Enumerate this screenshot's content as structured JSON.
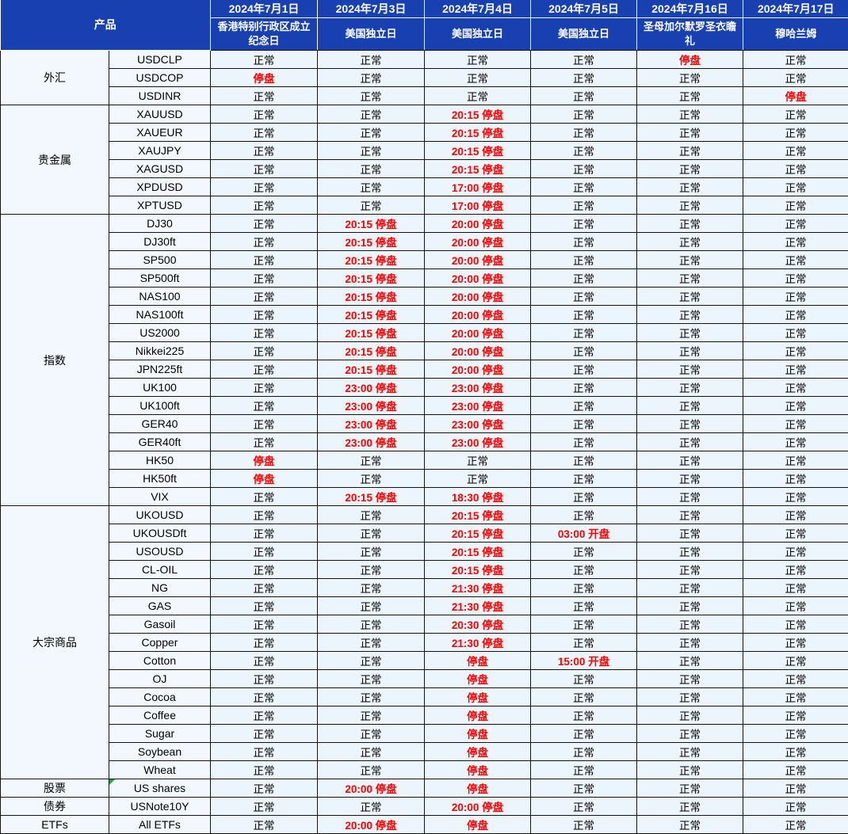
{
  "header": {
    "product_label": "产品",
    "columns": [
      {
        "date": "2024年7月1日",
        "holiday": "香港特别行政区成立纪念日"
      },
      {
        "date": "2024年7月3日",
        "holiday": "美国独立日"
      },
      {
        "date": "2024年7月4日",
        "holiday": "美国独立日"
      },
      {
        "date": "2024年7月5日",
        "holiday": "美国独立日"
      },
      {
        "date": "2024年7月16日",
        "holiday": "圣母加尔默罗圣衣瞻礼"
      },
      {
        "date": "2024年7月17日",
        "holiday": "穆哈兰姆"
      }
    ]
  },
  "statuses": {
    "normal": "正常",
    "closed": "停盘",
    "open": "开盘"
  },
  "colors": {
    "header_bg": "#1840b0",
    "header_text": "#ffffff",
    "status_cell_bg": "#ecf5fb",
    "label_cell_bg": "#f2f8fd",
    "alert_text": "#ff0000",
    "normal_text": "#000000",
    "border": "#141414",
    "corner_marker_green": "#2e9e44"
  },
  "groups": [
    {
      "category": "外汇",
      "rows": [
        {
          "product": "USDCLP",
          "cells": [
            "正常",
            "正常",
            "正常",
            "正常",
            "停盘",
            "正常"
          ]
        },
        {
          "product": "USDCOP",
          "cells": [
            "停盘",
            "正常",
            "正常",
            "正常",
            "正常",
            "正常"
          ]
        },
        {
          "product": "USDINR",
          "cells": [
            "正常",
            "正常",
            "正常",
            "正常",
            "正常",
            "停盘"
          ]
        }
      ]
    },
    {
      "category": "贵金属",
      "rows": [
        {
          "product": "XAUUSD",
          "cells": [
            "正常",
            "正常",
            "20:15 停盘",
            "正常",
            "正常",
            "正常"
          ]
        },
        {
          "product": "XAUEUR",
          "cells": [
            "正常",
            "正常",
            "20:15 停盘",
            "正常",
            "正常",
            "正常"
          ]
        },
        {
          "product": "XAUJPY",
          "cells": [
            "正常",
            "正常",
            "20:15 停盘",
            "正常",
            "正常",
            "正常"
          ]
        },
        {
          "product": "XAGUSD",
          "cells": [
            "正常",
            "正常",
            "20:15 停盘",
            "正常",
            "正常",
            "正常"
          ]
        },
        {
          "product": "XPDUSD",
          "cells": [
            "正常",
            "正常",
            "17:00 停盘",
            "正常",
            "正常",
            "正常"
          ]
        },
        {
          "product": "XPTUSD",
          "cells": [
            "正常",
            "正常",
            "17:00 停盘",
            "正常",
            "正常",
            "正常"
          ]
        }
      ]
    },
    {
      "category": "指数",
      "rows": [
        {
          "product": "DJ30",
          "cells": [
            "正常",
            "20:15 停盘",
            "20:00 停盘",
            "正常",
            "正常",
            "正常"
          ]
        },
        {
          "product": "DJ30ft",
          "cells": [
            "正常",
            "20:15 停盘",
            "20:00 停盘",
            "正常",
            "正常",
            "正常"
          ]
        },
        {
          "product": "SP500",
          "cells": [
            "正常",
            "20:15 停盘",
            "20:00 停盘",
            "正常",
            "正常",
            "正常"
          ]
        },
        {
          "product": "SP500ft",
          "cells": [
            "正常",
            "20:15 停盘",
            "20:00 停盘",
            "正常",
            "正常",
            "正常"
          ]
        },
        {
          "product": "NAS100",
          "cells": [
            "正常",
            "20:15 停盘",
            "20:00 停盘",
            "正常",
            "正常",
            "正常"
          ]
        },
        {
          "product": "NAS100ft",
          "cells": [
            "正常",
            "20:15 停盘",
            "20:00 停盘",
            "正常",
            "正常",
            "正常"
          ]
        },
        {
          "product": "US2000",
          "cells": [
            "正常",
            "20:15 停盘",
            "20:00 停盘",
            "正常",
            "正常",
            "正常"
          ]
        },
        {
          "product": "Nikkei225",
          "cells": [
            "正常",
            "20:15 停盘",
            "20:00 停盘",
            "正常",
            "正常",
            "正常"
          ]
        },
        {
          "product": "JPN225ft",
          "cells": [
            "正常",
            "20:15 停盘",
            "20:00 停盘",
            "正常",
            "正常",
            "正常"
          ]
        },
        {
          "product": "UK100",
          "cells": [
            "正常",
            "23:00 停盘",
            "23:00 停盘",
            "正常",
            "正常",
            "正常"
          ]
        },
        {
          "product": "UK100ft",
          "cells": [
            "正常",
            "23:00 停盘",
            "23:00 停盘",
            "正常",
            "正常",
            "正常"
          ]
        },
        {
          "product": "GER40",
          "cells": [
            "正常",
            "23:00 停盘",
            "23:00 停盘",
            "正常",
            "正常",
            "正常"
          ]
        },
        {
          "product": "GER40ft",
          "cells": [
            "正常",
            "23:00 停盘",
            "23:00 停盘",
            "正常",
            "正常",
            "正常"
          ]
        },
        {
          "product": "HK50",
          "cells": [
            "停盘",
            "正常",
            "正常",
            "正常",
            "正常",
            "正常"
          ]
        },
        {
          "product": "HK50ft",
          "cells": [
            "停盘",
            "正常",
            "正常",
            "正常",
            "正常",
            "正常"
          ]
        },
        {
          "product": "VIX",
          "cells": [
            "正常",
            "20:15 停盘",
            "18:30 停盘",
            "正常",
            "正常",
            "正常"
          ]
        }
      ]
    },
    {
      "category": "大宗商品",
      "rows": [
        {
          "product": "UKOUSD",
          "cells": [
            "正常",
            "正常",
            "20:15 停盘",
            "正常",
            "正常",
            "正常"
          ]
        },
        {
          "product": "UKOUSDft",
          "cells": [
            "正常",
            "正常",
            "20:15 停盘",
            "03:00 开盘",
            "正常",
            "正常"
          ]
        },
        {
          "product": "USOUSD",
          "cells": [
            "正常",
            "正常",
            "20:15 停盘",
            "正常",
            "正常",
            "正常"
          ]
        },
        {
          "product": "CL-OIL",
          "cells": [
            "正常",
            "正常",
            "20:15 停盘",
            "正常",
            "正常",
            "正常"
          ]
        },
        {
          "product": "NG",
          "cells": [
            "正常",
            "正常",
            "21:30 停盘",
            "正常",
            "正常",
            "正常"
          ]
        },
        {
          "product": "GAS",
          "cells": [
            "正常",
            "正常",
            "21:30 停盘",
            "正常",
            "正常",
            "正常"
          ]
        },
        {
          "product": "Gasoil",
          "cells": [
            "正常",
            "正常",
            "20:30 停盘",
            "正常",
            "正常",
            "正常"
          ]
        },
        {
          "product": "Copper",
          "cells": [
            "正常",
            "正常",
            "21:30 停盘",
            "正常",
            "正常",
            "正常"
          ]
        },
        {
          "product": "Cotton",
          "cells": [
            "正常",
            "正常",
            "停盘",
            "15:00 开盘",
            "正常",
            "正常"
          ]
        },
        {
          "product": "OJ",
          "cells": [
            "正常",
            "正常",
            "停盘",
            "正常",
            "正常",
            "正常"
          ]
        },
        {
          "product": "Cocoa",
          "cells": [
            "正常",
            "正常",
            "停盘",
            "正常",
            "正常",
            "正常"
          ]
        },
        {
          "product": "Coffee",
          "cells": [
            "正常",
            "正常",
            "停盘",
            "正常",
            "正常",
            "正常"
          ]
        },
        {
          "product": "Sugar",
          "cells": [
            "正常",
            "正常",
            "停盘",
            "正常",
            "正常",
            "正常"
          ]
        },
        {
          "product": "Soybean",
          "cells": [
            "正常",
            "正常",
            "停盘",
            "正常",
            "正常",
            "正常"
          ]
        },
        {
          "product": "Wheat",
          "cells": [
            "正常",
            "正常",
            "停盘",
            "正常",
            "正常",
            "正常"
          ]
        }
      ]
    },
    {
      "category": "股票",
      "rows": [
        {
          "product": "US shares",
          "marker": true,
          "cells": [
            "正常",
            "20:00 停盘",
            "停盘",
            "正常",
            "正常",
            "正常"
          ]
        }
      ]
    },
    {
      "category": "债券",
      "rows": [
        {
          "product": "USNote10Y",
          "cells": [
            "正常",
            "正常",
            "20:00 停盘",
            "正常",
            "正常",
            "正常"
          ]
        }
      ]
    },
    {
      "category": "ETFs",
      "rows": [
        {
          "product": "All ETFs",
          "cells": [
            "正常",
            "20:00 停盘",
            "停盘",
            "正常",
            "正常",
            "正常"
          ]
        }
      ]
    }
  ]
}
